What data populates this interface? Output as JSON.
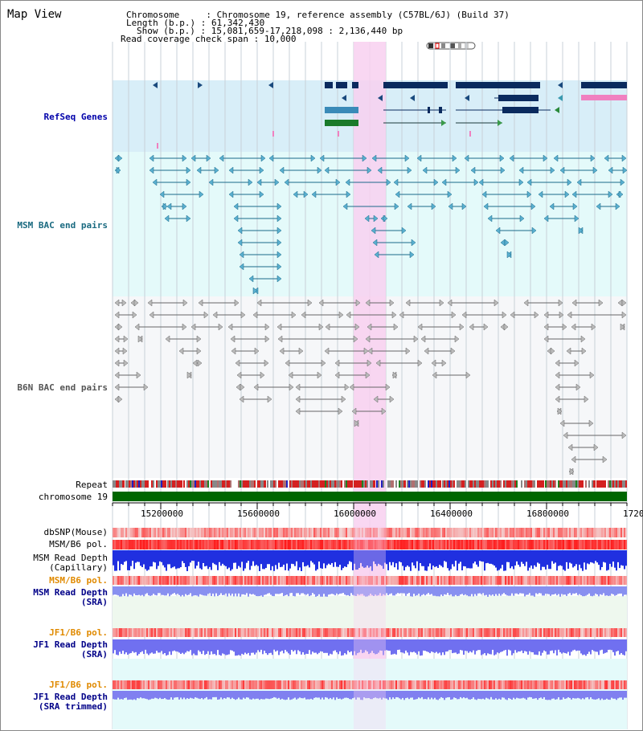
{
  "header": {
    "title": "Map View",
    "chromosome_key": "Chromosome     :",
    "chromosome_value": "Chromosome 19, reference assembly (C57BL/6J) (Build 37)",
    "length_key": "Length (b.p.) :",
    "length_value": "61,342,430",
    "show_key": "Show (b.p.) :",
    "show_value": "15,081,659-17,218,098 : 2,136,440 bp",
    "coverage_key": "Read coverage check span :",
    "coverage_value": "10,000"
  },
  "tracks": {
    "refseq": "RefSeq Genes",
    "msm_bac": "MSM BAC end pairs",
    "b6n_bac": "B6N BAC end pairs",
    "repeat": "Repeat",
    "chromosome": "chromosome 19",
    "dbsnp": "dbSNP(Mouse)",
    "msm_b6_pol_1": "MSM/B6 pol.",
    "msm_read_depth_cap_1": "MSM Read Depth",
    "msm_read_depth_cap_2": "(Capillary)",
    "msm_b6_pol_2": "MSM/B6 pol.",
    "msm_read_depth_sra_1": "MSM Read Depth",
    "msm_read_depth_sra_2": "(SRA)",
    "jf1_b6_pol_1": "JF1/B6 pol.",
    "jf1_read_depth_sra_1": "JF1 Read Depth",
    "jf1_read_depth_sra_2": "(SRA)",
    "jf1_b6_pol_2": "JF1/B6 pol.",
    "jf1_read_depth_trim_1": "JF1 Read Depth",
    "jf1_read_depth_trim_2": "(SRA trimmed)"
  },
  "ruler": {
    "ticks": [
      "15200000",
      "15600000",
      "16000000",
      "16400000",
      "16800000",
      "1720"
    ]
  },
  "colors": {
    "refseq_bg": "#d8eef8",
    "msm_bg": "#e4fafa",
    "b6n_bg": "#f4f6f8",
    "highlight": "#f8d0f0",
    "gene_dark": "#0a2a5e",
    "msm_line": "#1a6a8a",
    "b6n_line": "#555555",
    "chromosome": "#006600"
  }
}
